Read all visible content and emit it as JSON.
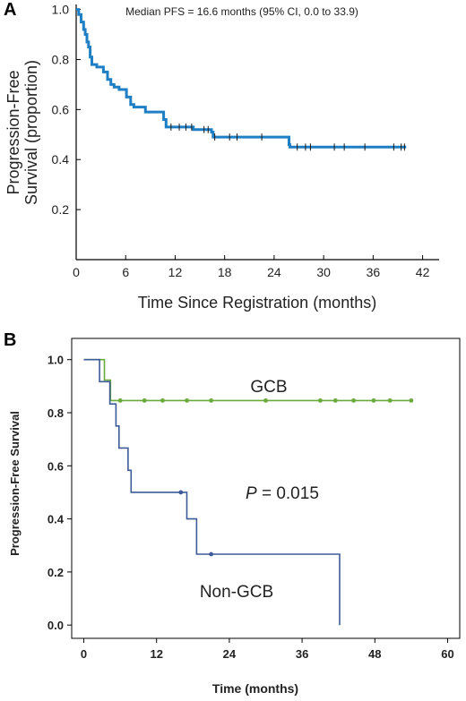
{
  "chart_data": [
    {
      "panel_label": "A",
      "type": "line",
      "annotation": "Median PFS = 16.6 months (95% CI, 0.0 to 33.9)",
      "xlabel": "Time Since Registration (months)",
      "ylabel_lines": [
        "Progression-Free",
        "Survival (proportion)"
      ],
      "xlim": [
        0,
        44
      ],
      "ylim": [
        0,
        1.02
      ],
      "xticks": [
        0,
        6,
        12,
        18,
        24,
        30,
        36,
        42
      ],
      "yticks": [
        0.2,
        0.4,
        0.6,
        0.8,
        1.0
      ],
      "ytick_labels": [
        "0.2",
        "0.4",
        "0.6",
        "0.8",
        "1.0"
      ],
      "colors": {
        "line": "#1f7fc4"
      },
      "series": [
        {
          "steps": [
            [
              0,
              1.0
            ],
            [
              0.3,
              0.98
            ],
            [
              0.6,
              0.95
            ],
            [
              0.9,
              0.92
            ],
            [
              1.1,
              0.9
            ],
            [
              1.3,
              0.87
            ],
            [
              1.5,
              0.85
            ],
            [
              1.7,
              0.81
            ],
            [
              1.9,
              0.78
            ],
            [
              2.5,
              0.77
            ],
            [
              3.3,
              0.75
            ],
            [
              3.8,
              0.72
            ],
            [
              4.2,
              0.7
            ],
            [
              4.6,
              0.69
            ],
            [
              5.2,
              0.68
            ],
            [
              6.1,
              0.65
            ],
            [
              6.6,
              0.62
            ],
            [
              7.0,
              0.61
            ],
            [
              8.4,
              0.59
            ],
            [
              10.6,
              0.56
            ],
            [
              10.9,
              0.53
            ],
            [
              14.2,
              0.52
            ],
            [
              16.4,
              0.51
            ],
            [
              16.6,
              0.49
            ],
            [
              25.8,
              0.46
            ],
            [
              25.9,
              0.45
            ],
            [
              40.0,
              0.45
            ]
          ],
          "censor_x": [
            11.5,
            12.5,
            13.3,
            14.0,
            15.5,
            16.0,
            16.8,
            18.6,
            19.5,
            22.5,
            26.8,
            27.8,
            28.4,
            31.3,
            32.5,
            35.0,
            38.5,
            39.4,
            39.8
          ]
        }
      ]
    },
    {
      "panel_label": "B",
      "type": "line",
      "xlabel": "Time (months)",
      "ylabel": "Progression-Free Survival",
      "xlim": [
        -2,
        62
      ],
      "ylim": [
        -0.05,
        1.08
      ],
      "xticks": [
        0,
        12,
        24,
        36,
        48,
        60
      ],
      "yticks": [
        0.0,
        0.2,
        0.4,
        0.6,
        0.8,
        1.0
      ],
      "ytick_labels": [
        "0.0",
        "0.2",
        "0.4",
        "0.6",
        "0.8",
        "1.0"
      ],
      "p_value_italic": "P",
      "p_value_rest": " = 0.015",
      "series": [
        {
          "name": "GCB",
          "color": "#6aaa3a",
          "steps": [
            [
              0,
              1.0
            ],
            [
              3.4,
              0.923
            ],
            [
              4.4,
              0.846
            ],
            [
              54,
              0.846
            ]
          ],
          "censor_x": [
            6.0,
            10.0,
            13.0,
            17.0,
            21.0,
            30.0,
            39.0,
            41.5,
            44.5,
            47.8,
            50.5,
            54.0
          ]
        },
        {
          "name": "Non-GCB",
          "color": "#3d5a99",
          "steps": [
            [
              0,
              1.0
            ],
            [
              2.6,
              0.917
            ],
            [
              4.3,
              0.833
            ],
            [
              5.3,
              0.75
            ],
            [
              5.8,
              0.667
            ],
            [
              7.3,
              0.583
            ],
            [
              7.8,
              0.5
            ],
            [
              17.0,
              0.4
            ],
            [
              18.6,
              0.267
            ],
            [
              42.2,
              0.0
            ]
          ],
          "censor_x": [
            16.0,
            21.0
          ]
        }
      ]
    }
  ]
}
